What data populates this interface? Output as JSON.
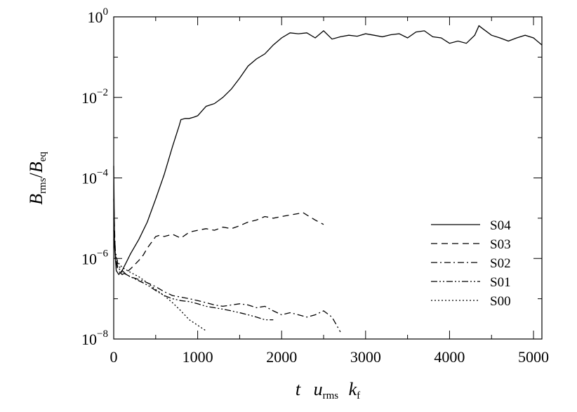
{
  "chart_data": {
    "type": "line",
    "title": "",
    "xlabel": {
      "base1": "t",
      "base2": "u",
      "sub2": "rms",
      "base3": "k",
      "sub3": "f"
    },
    "ylabel": {
      "num": "B",
      "num_sub": "rms",
      "slash": "/",
      "den": "B",
      "den_sub": "eq"
    },
    "xlim": [
      0,
      5100
    ],
    "ylim": [
      1e-08,
      1
    ],
    "yscale": "log",
    "x_ticks": [
      0,
      1000,
      2000,
      3000,
      4000,
      5000
    ],
    "x_tick_labels": [
      "0",
      "1000",
      "2000",
      "3000",
      "4000",
      "5000"
    ],
    "y_ticks": [
      {
        "value": 1e-08,
        "base": "10",
        "exp": "−8"
      },
      {
        "value": 1e-06,
        "base": "10",
        "exp": "−6"
      },
      {
        "value": 0.0001,
        "base": "10",
        "exp": "−4"
      },
      {
        "value": 0.01,
        "base": "10",
        "exp": "−2"
      },
      {
        "value": 1,
        "base": "10",
        "exp": "0"
      }
    ],
    "grid": false,
    "legend_position": "right",
    "line_color": "#000000",
    "series": [
      {
        "name": "S04",
        "dash": "solid",
        "x": [
          0,
          10,
          30,
          60,
          100,
          150,
          200,
          300,
          400,
          500,
          600,
          700,
          780,
          800,
          850,
          900,
          950,
          1000,
          1100,
          1200,
          1300,
          1400,
          1500,
          1600,
          1700,
          1800,
          1900,
          2000,
          2100,
          2200,
          2300,
          2400,
          2500,
          2600,
          2700,
          2800,
          2900,
          3000,
          3100,
          3200,
          3300,
          3400,
          3500,
          3600,
          3700,
          3800,
          3900,
          4000,
          4100,
          4200,
          4300,
          4350,
          4400,
          4500,
          4600,
          4700,
          4800,
          4900,
          5000,
          5100
        ],
        "y": [
          0.0002,
          2e-06,
          5e-07,
          4e-07,
          5e-07,
          8e-07,
          1.3e-06,
          3e-06,
          8e-06,
          3e-05,
          0.00012,
          0.0006,
          0.002,
          0.0028,
          0.003,
          0.003,
          0.0032,
          0.0035,
          0.006,
          0.007,
          0.01,
          0.016,
          0.03,
          0.06,
          0.09,
          0.12,
          0.2,
          0.3,
          0.4,
          0.38,
          0.4,
          0.3,
          0.45,
          0.28,
          0.32,
          0.35,
          0.33,
          0.38,
          0.35,
          0.32,
          0.36,
          0.38,
          0.3,
          0.42,
          0.45,
          0.32,
          0.3,
          0.22,
          0.25,
          0.22,
          0.35,
          0.6,
          0.5,
          0.35,
          0.3,
          0.25,
          0.3,
          0.35,
          0.3,
          0.2
        ]
      },
      {
        "name": "S03",
        "dash": "dashed",
        "x": [
          0,
          20,
          50,
          100,
          150,
          200,
          250,
          300,
          350,
          400,
          450,
          500,
          550,
          600,
          700,
          800,
          900,
          1000,
          1100,
          1200,
          1300,
          1400,
          1500,
          1600,
          1700,
          1800,
          1900,
          2000,
          2100,
          2200,
          2250,
          2300,
          2400,
          2500
        ],
        "y": [
          3e-05,
          1e-06,
          5e-07,
          4e-07,
          4.5e-07,
          5.5e-07,
          7e-07,
          9e-07,
          1.2e-06,
          1.8e-06,
          2.5e-06,
          3.5e-06,
          3.8e-06,
          3.5e-06,
          4e-06,
          3.2e-06,
          4.5e-06,
          5e-06,
          5.5e-06,
          5e-06,
          6e-06,
          5.5e-06,
          6.5e-06,
          8e-06,
          9e-06,
          1.1e-05,
          1e-05,
          1.1e-05,
          1.2e-05,
          1.3e-05,
          1.4e-05,
          1.2e-05,
          9e-06,
          7e-06
        ]
      },
      {
        "name": "S02",
        "dash": "dashdot",
        "x": [
          0,
          20,
          50,
          100,
          150,
          200,
          300,
          400,
          500,
          600,
          700,
          800,
          900,
          1000,
          1100,
          1200,
          1300,
          1400,
          1500,
          1600,
          1700,
          1800,
          1900,
          2000,
          2100,
          2200,
          2300,
          2400,
          2500,
          2600,
          2700
        ],
        "y": [
          1e-05,
          1.5e-06,
          7e-07,
          5e-07,
          4e-07,
          3.5e-07,
          3e-07,
          2.5e-07,
          2e-07,
          1.5e-07,
          1.2e-07,
          1.1e-07,
          1e-07,
          9e-08,
          8e-08,
          7e-08,
          6.5e-08,
          7e-08,
          7.5e-08,
          7e-08,
          6e-08,
          6.5e-08,
          5e-08,
          4e-08,
          4.5e-08,
          4e-08,
          3.5e-08,
          4e-08,
          5e-08,
          3.5e-08,
          1.5e-08
        ]
      },
      {
        "name": "S01",
        "dash": "dashdotdot",
        "x": [
          0,
          20,
          50,
          100,
          150,
          200,
          300,
          400,
          500,
          600,
          700,
          800,
          900,
          1000,
          1100,
          1200,
          1300,
          1400,
          1500,
          1600,
          1700,
          1800,
          1900
        ],
        "y": [
          5e-06,
          1e-06,
          6e-07,
          4.5e-07,
          4e-07,
          3.5e-07,
          2.8e-07,
          2.2e-07,
          1.6e-07,
          1.2e-07,
          1e-07,
          9e-08,
          8.5e-08,
          7.5e-08,
          6.5e-08,
          6e-08,
          5.5e-08,
          5e-08,
          4.5e-08,
          4e-08,
          3.5e-08,
          3e-08,
          3e-08
        ]
      },
      {
        "name": "S00",
        "dash": "dotted",
        "x": [
          0,
          20,
          50,
          100,
          200,
          300,
          400,
          500,
          600,
          700,
          800,
          900,
          1000,
          1100
        ],
        "y": [
          3e-06,
          1.2e-06,
          8e-07,
          6e-07,
          4.5e-07,
          3.5e-07,
          2.5e-07,
          1.7e-07,
          1.2e-07,
          8e-08,
          5e-08,
          3e-08,
          2.2e-08,
          1.6e-08
        ]
      }
    ]
  }
}
